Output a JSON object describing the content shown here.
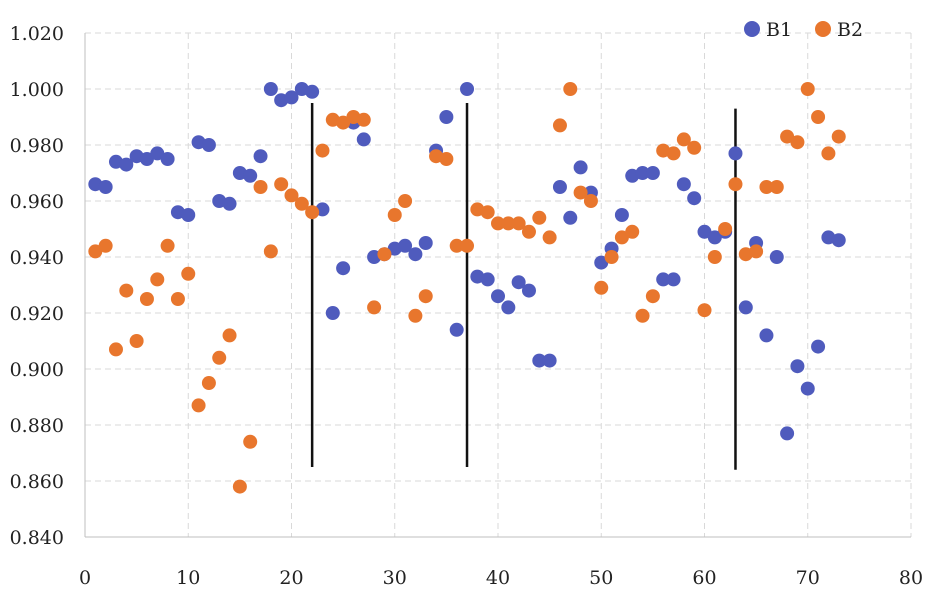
{
  "chart_data": {
    "type": "scatter",
    "title": "",
    "xlabel": "",
    "ylabel": "",
    "xlim": [
      0,
      80
    ],
    "ylim": [
      0.84,
      1.02
    ],
    "x_ticks": [
      0,
      10,
      20,
      30,
      40,
      50,
      60,
      70,
      80
    ],
    "y_ticks": [
      0.84,
      0.86,
      0.88,
      0.9,
      0.92,
      0.94,
      0.96,
      0.98,
      1.0,
      1.02
    ],
    "y_tick_labels": [
      "0.840",
      "0.860",
      "0.880",
      "0.900",
      "0.920",
      "0.940",
      "0.960",
      "0.980",
      "1.000",
      "1.020"
    ],
    "grid": "dashed",
    "legend_position": "top-right",
    "vertical_lines": [
      {
        "x": 22,
        "y_range": [
          0.865,
          0.995
        ]
      },
      {
        "x": 37,
        "y_range": [
          0.865,
          0.995
        ]
      },
      {
        "x": 63,
        "y_range": [
          0.864,
          0.993
        ]
      }
    ],
    "series": [
      {
        "name": "B1",
        "color": "#4f5bbd",
        "points": [
          [
            1,
            0.966
          ],
          [
            2,
            0.965
          ],
          [
            3,
            0.974
          ],
          [
            4,
            0.973
          ],
          [
            5,
            0.976
          ],
          [
            6,
            0.975
          ],
          [
            7,
            0.977
          ],
          [
            8,
            0.975
          ],
          [
            9,
            0.956
          ],
          [
            10,
            0.955
          ],
          [
            11,
            0.981
          ],
          [
            12,
            0.98
          ],
          [
            13,
            0.96
          ],
          [
            14,
            0.959
          ],
          [
            15,
            0.97
          ],
          [
            16,
            0.969
          ],
          [
            17,
            0.976
          ],
          [
            18,
            1.0
          ],
          [
            19,
            0.996
          ],
          [
            20,
            0.997
          ],
          [
            21,
            1.0
          ],
          [
            22,
            0.999
          ],
          [
            23,
            0.957
          ],
          [
            24,
            0.92
          ],
          [
            25,
            0.936
          ],
          [
            26,
            0.988
          ],
          [
            27,
            0.982
          ],
          [
            28,
            0.94
          ],
          [
            29,
            0.941
          ],
          [
            30,
            0.943
          ],
          [
            31,
            0.944
          ],
          [
            32,
            0.941
          ],
          [
            33,
            0.945
          ],
          [
            34,
            0.978
          ],
          [
            35,
            0.99
          ],
          [
            36,
            0.914
          ],
          [
            37,
            1.0
          ],
          [
            38,
            0.933
          ],
          [
            39,
            0.932
          ],
          [
            40,
            0.926
          ],
          [
            41,
            0.922
          ],
          [
            42,
            0.931
          ],
          [
            43,
            0.928
          ],
          [
            44,
            0.903
          ],
          [
            45,
            0.903
          ],
          [
            46,
            0.965
          ],
          [
            47,
            0.954
          ],
          [
            48,
            0.972
          ],
          [
            49,
            0.963
          ],
          [
            50,
            0.938
          ],
          [
            51,
            0.943
          ],
          [
            52,
            0.955
          ],
          [
            53,
            0.969
          ],
          [
            54,
            0.97
          ],
          [
            55,
            0.97
          ],
          [
            56,
            0.932
          ],
          [
            57,
            0.932
          ],
          [
            58,
            0.966
          ],
          [
            59,
            0.961
          ],
          [
            60,
            0.949
          ],
          [
            61,
            0.947
          ],
          [
            62,
            0.949
          ],
          [
            63,
            0.977
          ],
          [
            64,
            0.922
          ],
          [
            65,
            0.945
          ],
          [
            66,
            0.912
          ],
          [
            67,
            0.94
          ],
          [
            68,
            0.877
          ],
          [
            69,
            0.901
          ],
          [
            70,
            0.893
          ],
          [
            71,
            0.908
          ],
          [
            72,
            0.947
          ],
          [
            73,
            0.946
          ]
        ]
      },
      {
        "name": "B2",
        "color": "#e8762d",
        "points": [
          [
            1,
            0.942
          ],
          [
            2,
            0.944
          ],
          [
            3,
            0.907
          ],
          [
            4,
            0.928
          ],
          [
            5,
            0.91
          ],
          [
            6,
            0.925
          ],
          [
            7,
            0.932
          ],
          [
            8,
            0.944
          ],
          [
            9,
            0.925
          ],
          [
            10,
            0.934
          ],
          [
            11,
            0.887
          ],
          [
            12,
            0.895
          ],
          [
            13,
            0.904
          ],
          [
            14,
            0.912
          ],
          [
            15,
            0.858
          ],
          [
            16,
            0.874
          ],
          [
            17,
            0.965
          ],
          [
            18,
            0.942
          ],
          [
            19,
            0.966
          ],
          [
            20,
            0.962
          ],
          [
            21,
            0.959
          ],
          [
            22,
            0.956
          ],
          [
            23,
            0.978
          ],
          [
            24,
            0.989
          ],
          [
            25,
            0.988
          ],
          [
            26,
            0.99
          ],
          [
            27,
            0.989
          ],
          [
            28,
            0.922
          ],
          [
            29,
            0.941
          ],
          [
            30,
            0.955
          ],
          [
            31,
            0.96
          ],
          [
            32,
            0.919
          ],
          [
            33,
            0.926
          ],
          [
            34,
            0.976
          ],
          [
            35,
            0.975
          ],
          [
            36,
            0.944
          ],
          [
            37,
            0.944
          ],
          [
            38,
            0.957
          ],
          [
            39,
            0.956
          ],
          [
            40,
            0.952
          ],
          [
            41,
            0.952
          ],
          [
            42,
            0.952
          ],
          [
            43,
            0.949
          ],
          [
            44,
            0.954
          ],
          [
            45,
            0.947
          ],
          [
            46,
            0.987
          ],
          [
            47,
            1.0
          ],
          [
            48,
            0.963
          ],
          [
            49,
            0.96
          ],
          [
            50,
            0.929
          ],
          [
            51,
            0.94
          ],
          [
            52,
            0.947
          ],
          [
            53,
            0.949
          ],
          [
            54,
            0.919
          ],
          [
            55,
            0.926
          ],
          [
            56,
            0.978
          ],
          [
            57,
            0.977
          ],
          [
            58,
            0.982
          ],
          [
            59,
            0.979
          ],
          [
            60,
            0.921
          ],
          [
            61,
            0.94
          ],
          [
            62,
            0.95
          ],
          [
            63,
            0.966
          ],
          [
            64,
            0.941
          ],
          [
            65,
            0.942
          ],
          [
            66,
            0.965
          ],
          [
            67,
            0.965
          ],
          [
            68,
            0.983
          ],
          [
            69,
            0.981
          ],
          [
            70,
            1.0
          ],
          [
            71,
            0.99
          ],
          [
            72,
            0.977
          ],
          [
            73,
            0.983
          ]
        ]
      }
    ]
  }
}
